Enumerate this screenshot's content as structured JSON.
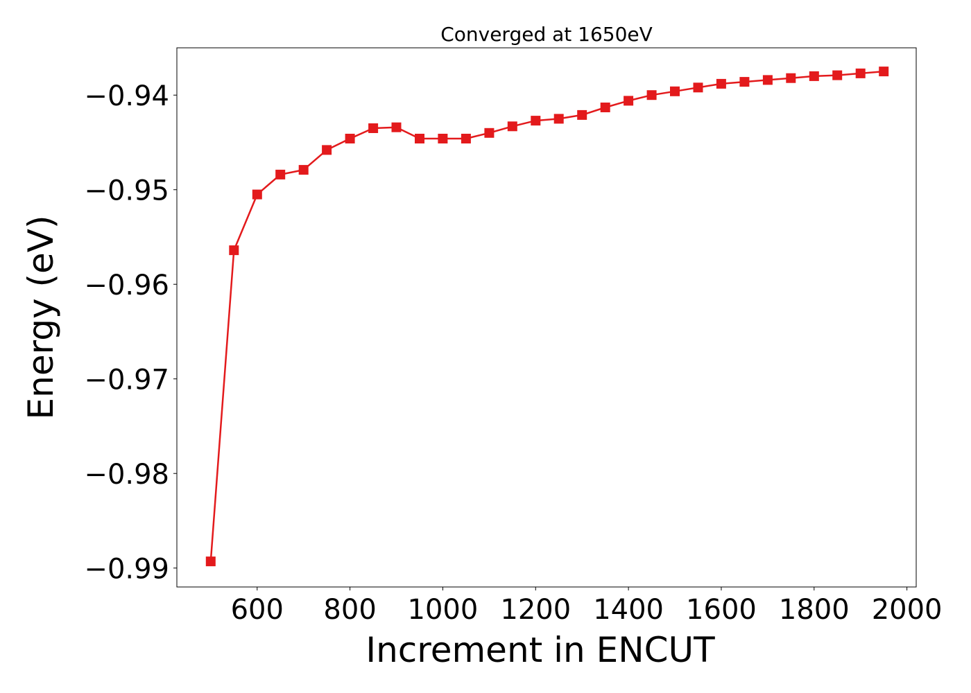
{
  "chart_data": {
    "type": "line",
    "title": "Converged at 1650eV",
    "xlabel": "Increment in ENCUT",
    "ylabel": "Energy (eV)",
    "xlim": [
      427,
      2020
    ],
    "ylim": [
      -0.992,
      -0.935
    ],
    "xticks": [
      600,
      800,
      1000,
      1200,
      1400,
      1600,
      1800,
      2000
    ],
    "xtick_labels": [
      "600",
      "800",
      "1000",
      "1200",
      "1400",
      "1600",
      "1800",
      "2000"
    ],
    "yticks": [
      -0.94,
      -0.95,
      -0.96,
      -0.97,
      -0.98,
      -0.99
    ],
    "ytick_labels": [
      "−0.94",
      "−0.95",
      "−0.96",
      "−0.97",
      "−0.98",
      "−0.99"
    ],
    "grid": false,
    "series": [
      {
        "color": "#e31a1c",
        "marker": "square",
        "x": [
          500,
          550,
          600,
          650,
          700,
          750,
          800,
          850,
          900,
          950,
          1000,
          1050,
          1100,
          1150,
          1200,
          1250,
          1300,
          1350,
          1400,
          1450,
          1500,
          1550,
          1600,
          1650,
          1700,
          1750,
          1800,
          1850,
          1900,
          1950
        ],
        "values": [
          -0.9893,
          -0.9564,
          -0.9505,
          -0.9484,
          -0.9479,
          -0.9458,
          -0.9446,
          -0.9435,
          -0.9434,
          -0.9446,
          -0.9446,
          -0.9446,
          -0.944,
          -0.9433,
          -0.9427,
          -0.9425,
          -0.9421,
          -0.9413,
          -0.9406,
          -0.94,
          -0.9396,
          -0.9392,
          -0.9388,
          -0.9386,
          -0.9384,
          -0.9382,
          -0.938,
          -0.9379,
          -0.9377,
          -0.9375
        ]
      }
    ]
  }
}
